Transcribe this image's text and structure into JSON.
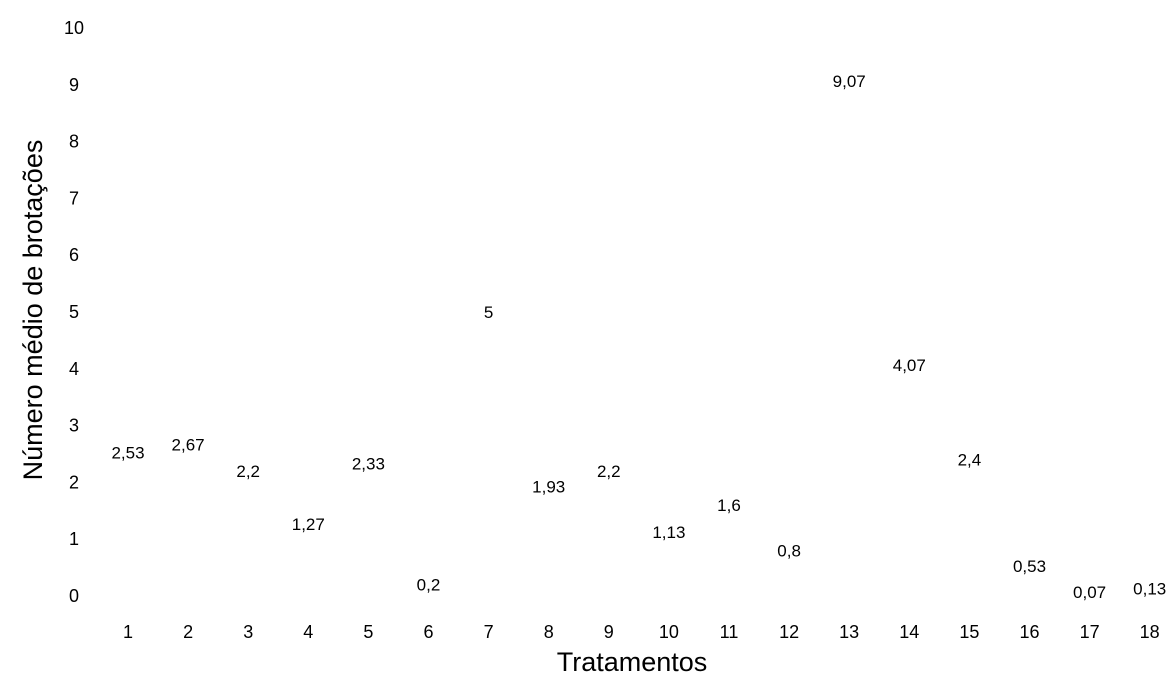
{
  "chart_data": {
    "type": "scatter",
    "title": "",
    "xlabel": "Tratamentos",
    "ylabel": "Número médio de brotações",
    "ylim": [
      0,
      10
    ],
    "y_ticks": [
      "0",
      "1",
      "2",
      "3",
      "4",
      "5",
      "6",
      "7",
      "8",
      "9",
      "10"
    ],
    "categories": [
      "1",
      "2",
      "3",
      "4",
      "5",
      "6",
      "7",
      "8",
      "9",
      "10",
      "11",
      "12",
      "13",
      "14",
      "15",
      "16",
      "17",
      "18"
    ],
    "values": [
      2.53,
      2.67,
      2.2,
      1.27,
      2.33,
      0.2,
      5,
      1.93,
      2.2,
      1.13,
      1.6,
      0.8,
      9.07,
      4.07,
      2.4,
      0.53,
      0.07,
      0.13
    ],
    "data_labels": [
      "2,53",
      "2,67",
      "2,2",
      "1,27",
      "2,33",
      "0,2",
      "5",
      "1,93",
      "2,2",
      "1,13",
      "1,6",
      "0,8",
      "9,07",
      "4,07",
      "2,4",
      "0,53",
      "0,07",
      "0,13"
    ],
    "grid": false,
    "legend": "none",
    "marker": "none"
  }
}
